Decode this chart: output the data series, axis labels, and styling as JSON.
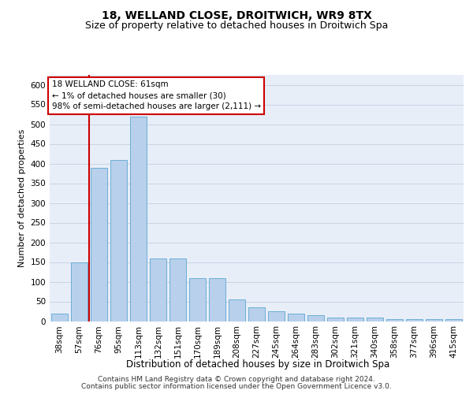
{
  "title": "18, WELLAND CLOSE, DROITWICH, WR9 8TX",
  "subtitle": "Size of property relative to detached houses in Droitwich Spa",
  "xlabel": "Distribution of detached houses by size in Droitwich Spa",
  "ylabel": "Number of detached properties",
  "footer_line1": "Contains HM Land Registry data © Crown copyright and database right 2024.",
  "footer_line2": "Contains public sector information licensed under the Open Government Licence v3.0.",
  "categories": [
    "38sqm",
    "57sqm",
    "76sqm",
    "95sqm",
    "113sqm",
    "132sqm",
    "151sqm",
    "170sqm",
    "189sqm",
    "208sqm",
    "227sqm",
    "245sqm",
    "264sqm",
    "283sqm",
    "302sqm",
    "321sqm",
    "340sqm",
    "358sqm",
    "377sqm",
    "396sqm",
    "415sqm"
  ],
  "values": [
    20,
    150,
    390,
    410,
    520,
    160,
    160,
    110,
    110,
    55,
    35,
    25,
    20,
    15,
    10,
    10,
    10,
    5,
    5,
    5,
    5
  ],
  "bar_color": "#b8d0eb",
  "bar_edge_color": "#6baed6",
  "bar_linewidth": 0.7,
  "grid_color": "#c8d4e4",
  "background_color": "#e8eef8",
  "property_label_line1": "18 WELLAND CLOSE: 61sqm",
  "property_label_line2": "← 1% of detached houses are smaller (30)",
  "property_label_line3": "98% of semi-detached houses are larger (2,111) →",
  "red_line_color": "#cc0000",
  "annotation_box_facecolor": "#ffffff",
  "annotation_box_edgecolor": "#cc0000",
  "ylim": [
    0,
    625
  ],
  "yticks": [
    0,
    50,
    100,
    150,
    200,
    250,
    300,
    350,
    400,
    450,
    500,
    550,
    600
  ],
  "title_fontsize": 10,
  "subtitle_fontsize": 9,
  "xlabel_fontsize": 8.5,
  "ylabel_fontsize": 8,
  "tick_fontsize": 7.5,
  "annotation_fontsize": 7.5,
  "footer_fontsize": 6.5,
  "red_line_x": 1.5
}
